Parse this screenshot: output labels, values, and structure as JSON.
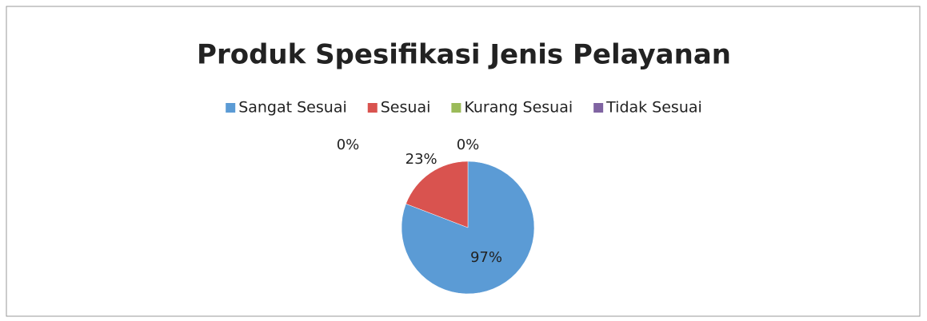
{
  "chart_data": {
    "type": "pie",
    "title": "Produk Spesifikasi Jenis Pelayanan",
    "categories": [
      "Sangat Sesuai",
      "Sesuai",
      "Kurang Sesuai",
      "Tidak Sesuai"
    ],
    "values": [
      97,
      23,
      0,
      0
    ],
    "value_labels": [
      "97%",
      "23%",
      "0%",
      "0%"
    ],
    "colors": [
      "#5b9bd5",
      "#d9534f",
      "#9bbb59",
      "#8064a2"
    ],
    "legend": "top"
  }
}
